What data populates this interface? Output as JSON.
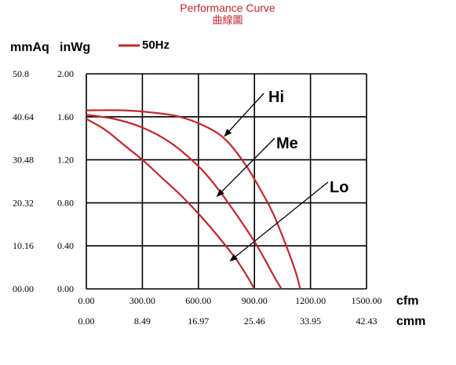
{
  "chart_data": {
    "type": "line",
    "title": "Performance Curve",
    "subtitle": "曲線圖",
    "y_units": [
      "mmAq",
      "inWg"
    ],
    "x_units": [
      "cfm",
      "cmm"
    ],
    "legend": [
      {
        "label": "50Hz",
        "color": "#c0282e"
      }
    ],
    "legend_position": "top-left",
    "grid": true,
    "xlim": [
      0,
      1500
    ],
    "ylim": [
      0,
      2
    ],
    "x_ticks_cfm": [
      "0.00",
      "300.00",
      "600.00",
      "900.00",
      "1200.00",
      "1500.00"
    ],
    "x_ticks_cmm": [
      "0.00",
      "8.49",
      "16.97",
      "25.46",
      "33.95",
      "42.43"
    ],
    "y_ticks_inwg": [
      "2.00",
      "1.60",
      "1.20",
      "0.80",
      "0.40",
      "0.00"
    ],
    "y_ticks_mmaq": [
      "50.8",
      "40.64",
      "30.48",
      "20.32",
      "10.16",
      "00.00"
    ],
    "series": [
      {
        "name": "Hi",
        "x": [
          0,
          200,
          350,
          500,
          650,
          750,
          850,
          920,
          1000,
          1070,
          1120,
          1145
        ],
        "y": [
          1.66,
          1.66,
          1.64,
          1.6,
          1.5,
          1.38,
          1.16,
          0.96,
          0.7,
          0.4,
          0.16,
          0.0
        ]
      },
      {
        "name": "Me",
        "x": [
          0,
          150,
          300,
          450,
          600,
          700,
          800,
          900,
          960,
          1010,
          1045
        ],
        "y": [
          1.62,
          1.58,
          1.5,
          1.36,
          1.14,
          0.94,
          0.7,
          0.44,
          0.26,
          0.1,
          0.0
        ]
      },
      {
        "name": "Lo",
        "x": [
          0,
          100,
          200,
          300,
          400,
          500,
          600,
          700,
          800,
          860,
          900
        ],
        "y": [
          1.58,
          1.48,
          1.34,
          1.2,
          1.04,
          0.88,
          0.7,
          0.5,
          0.28,
          0.12,
          0.0
        ]
      }
    ],
    "annotations": [
      {
        "label": "Hi",
        "point": [
          740,
          1.42
        ]
      },
      {
        "label": "Me",
        "point": [
          700,
          0.86
        ]
      },
      {
        "label": "Lo",
        "point": [
          770,
          0.26
        ]
      }
    ]
  }
}
